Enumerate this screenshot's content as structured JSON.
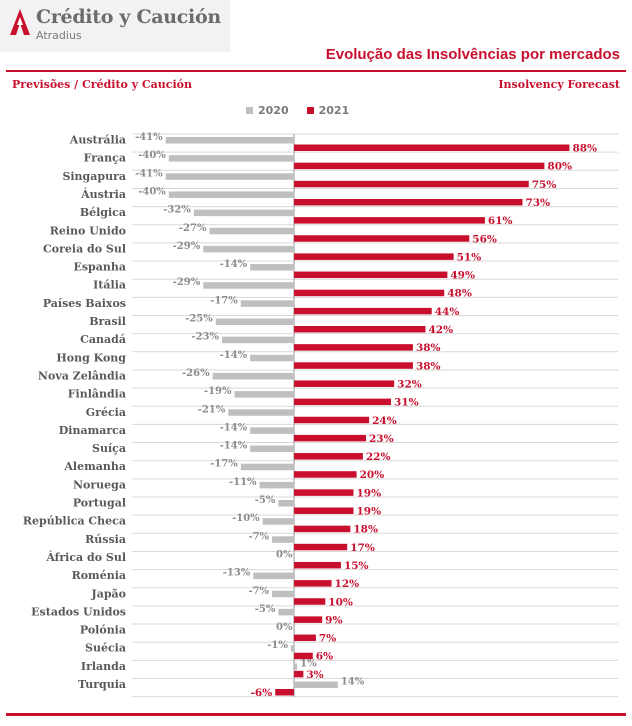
{
  "header": {
    "logo_name": "Crédito y Caución",
    "logo_sub": "Atradius",
    "title": "Evolução das Insolvências por mercados",
    "subtitle_left": "Previsões / Crédito y Caución",
    "subtitle_right": "Insolvency Forecast"
  },
  "colors": {
    "brand": "#c8102e",
    "series_2020": "#bfbfbf",
    "series_2021": "#c8102e",
    "grid": "#d9d9d9"
  },
  "chart_data": {
    "type": "bar",
    "orientation": "horizontal",
    "unit": "%",
    "categories": [
      "Austrália",
      "França",
      "Singapura",
      "Áustria",
      "Bélgica",
      "Reino Unido",
      "Coreia do Sul",
      "Espanha",
      "Itália",
      "Países Baixos",
      "Brasil",
      "Canadá",
      "Hong Kong",
      "Nova Zelândia",
      "Finlândia",
      "Grécia",
      "Dinamarca",
      "Suíça",
      "Alemanha",
      "Noruega",
      "Portugal",
      "República Checa",
      "Rússia",
      "África do Sul",
      "Roménia",
      "Japão",
      "Estados Unidos",
      "Polónia",
      "Suécia",
      "Irlanda",
      "Turquia"
    ],
    "series": [
      {
        "name": "2020",
        "values": [
          -41,
          -40,
          -41,
          -40,
          -32,
          -27,
          -29,
          -14,
          -29,
          -17,
          -25,
          -23,
          -14,
          -26,
          -19,
          -21,
          -14,
          -14,
          -17,
          -11,
          -5,
          -10,
          -7,
          0,
          -13,
          -7,
          -5,
          0,
          -1,
          1,
          14
        ]
      },
      {
        "name": "2021",
        "values": [
          88,
          80,
          75,
          73,
          61,
          56,
          51,
          49,
          48,
          44,
          42,
          38,
          38,
          32,
          31,
          24,
          23,
          22,
          20,
          19,
          19,
          18,
          17,
          15,
          12,
          10,
          9,
          7,
          6,
          3,
          -6
        ]
      }
    ],
    "grid": true,
    "legend_position": "top"
  }
}
